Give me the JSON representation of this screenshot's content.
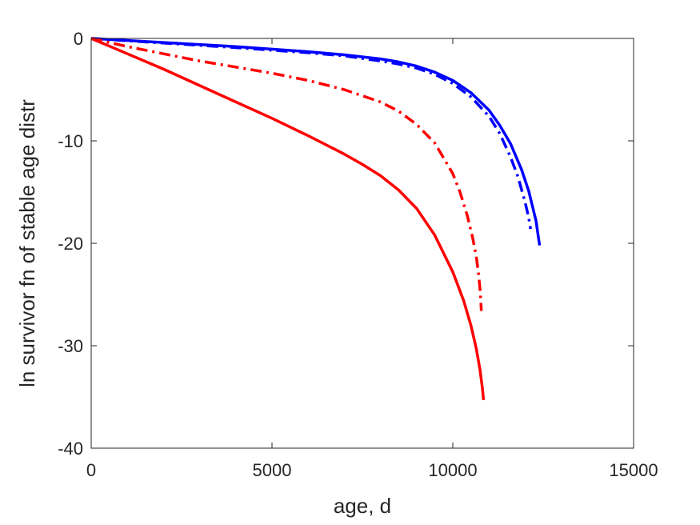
{
  "chart_data": {
    "type": "line",
    "title": "",
    "xlabel": "age, d",
    "ylabel": "ln survivor fn of stable age distr",
    "xlim": [
      0,
      15000
    ],
    "ylim": [
      -40,
      0
    ],
    "xticks": [
      0,
      5000,
      10000,
      15000
    ],
    "yticks": [
      0,
      -10,
      -20,
      -30,
      -40
    ],
    "xtick_labels": [
      "0",
      "5000",
      "10000",
      "15000"
    ],
    "ytick_labels": [
      "0",
      "-10",
      "-20",
      "-30",
      "-40"
    ],
    "grid": false,
    "series": [
      {
        "color": "#0000ff",
        "linestyle": "solid",
        "x": [
          0,
          2000,
          4000,
          6000,
          7000,
          8000,
          8500,
          9000,
          9500,
          10000,
          10500,
          11000,
          11300,
          11600,
          11900,
          12100,
          12300,
          12400
        ],
        "y": [
          0,
          -0.4,
          -0.8,
          -1.3,
          -1.6,
          -2.0,
          -2.3,
          -2.7,
          -3.3,
          -4.1,
          -5.3,
          -7.0,
          -8.5,
          -10.3,
          -12.8,
          -14.9,
          -17.8,
          -20.2
        ]
      },
      {
        "color": "#0000ff",
        "linestyle": "dashdot",
        "x": [
          0,
          2000,
          4000,
          6000,
          7000,
          8000,
          8500,
          9000,
          9500,
          10000,
          10500,
          11000,
          11300,
          11600,
          11800,
          12000,
          12100,
          12150
        ],
        "y": [
          0,
          -0.45,
          -0.9,
          -1.4,
          -1.7,
          -2.2,
          -2.5,
          -2.9,
          -3.5,
          -4.4,
          -5.7,
          -7.6,
          -9.3,
          -11.6,
          -13.5,
          -16.0,
          -17.5,
          -18.6
        ]
      },
      {
        "color": "#ff0000",
        "linestyle": "solid",
        "x": [
          0,
          1000,
          2000,
          3000,
          4000,
          5000,
          6000,
          7000,
          7500,
          8000,
          8500,
          9000,
          9500,
          10000,
          10300,
          10500,
          10650,
          10750,
          10820,
          10850
        ],
        "y": [
          0,
          -1.5,
          -3.0,
          -4.6,
          -6.2,
          -7.8,
          -9.5,
          -11.3,
          -12.3,
          -13.4,
          -14.8,
          -16.6,
          -19.2,
          -22.8,
          -25.6,
          -28.0,
          -30.3,
          -32.3,
          -34.2,
          -35.3
        ]
      },
      {
        "color": "#ff0000",
        "linestyle": "dashdot",
        "x": [
          0,
          1000,
          2000,
          3000,
          4000,
          5000,
          6000,
          7000,
          8000,
          8500,
          9000,
          9500,
          10000,
          10200,
          10400,
          10550,
          10650,
          10720,
          10760,
          10790
        ],
        "y": [
          0,
          -0.8,
          -1.5,
          -2.2,
          -2.8,
          -3.4,
          -4.1,
          -5.0,
          -6.2,
          -7.1,
          -8.4,
          -10.2,
          -13.2,
          -15.0,
          -17.3,
          -19.5,
          -21.3,
          -23.2,
          -24.8,
          -26.6
        ]
      }
    ]
  }
}
